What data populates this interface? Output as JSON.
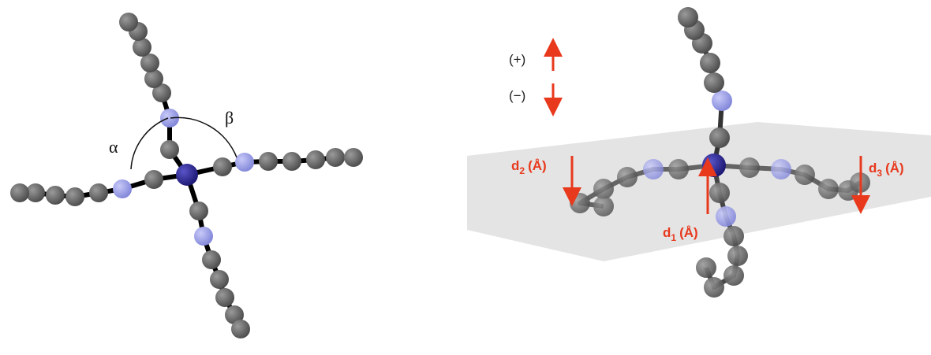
{
  "left_panel": {
    "alpha": "α",
    "beta": "β"
  },
  "right_panel": {
    "plus": "(+)",
    "minus": "(−)",
    "d2": {
      "symbol": "d",
      "index": "2",
      "unit": "(Å)"
    },
    "d1": {
      "symbol": "d",
      "index": "1",
      "unit": "(Å)"
    },
    "d3": {
      "symbol": "d",
      "index": "3",
      "unit": "(Å)"
    }
  }
}
